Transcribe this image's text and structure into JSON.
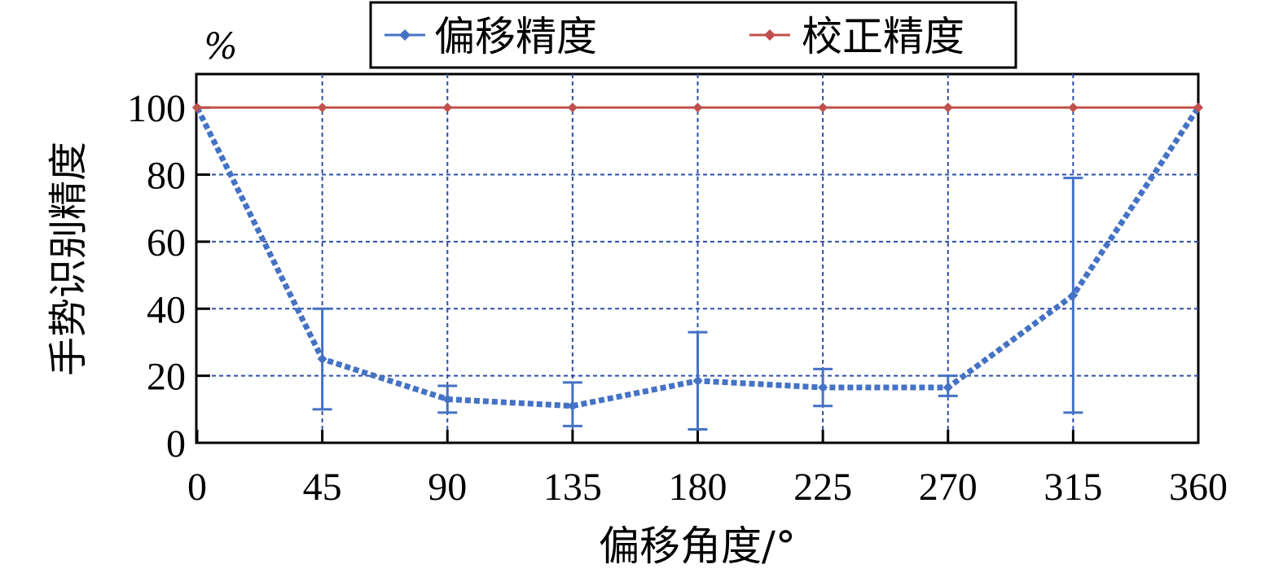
{
  "chart_data": {
    "type": "line",
    "x": [
      0,
      45,
      90,
      135,
      180,
      225,
      270,
      315,
      360
    ],
    "xticks": [
      "0",
      "45",
      "90",
      "135",
      "180",
      "225",
      "270",
      "315",
      "360"
    ],
    "yticks": [
      "0",
      "20",
      "40",
      "60",
      "80",
      "100"
    ],
    "xlim": [
      0,
      360
    ],
    "ylim": [
      0,
      110
    ],
    "xlabel": "偏移角度/°",
    "ylabel": "手势识别精度",
    "yunit": "%",
    "grid": true,
    "legend_position": "top-center",
    "series": [
      {
        "name": "偏移精度",
        "color": "#4472C4",
        "line_style": "dotted",
        "values": [
          100,
          25,
          13,
          11,
          18.5,
          16.5,
          16.5,
          44,
          100
        ],
        "error_upper": [
          null,
          40,
          17,
          18,
          33,
          22,
          20,
          79,
          null
        ],
        "error_lower": [
          null,
          10,
          9,
          5,
          4,
          11,
          14,
          9,
          null
        ]
      },
      {
        "name": "校正精度",
        "color": "#C0504D",
        "line_style": "solid",
        "values": [
          100,
          100,
          100,
          100,
          100,
          100,
          100,
          100,
          100
        ]
      }
    ]
  }
}
